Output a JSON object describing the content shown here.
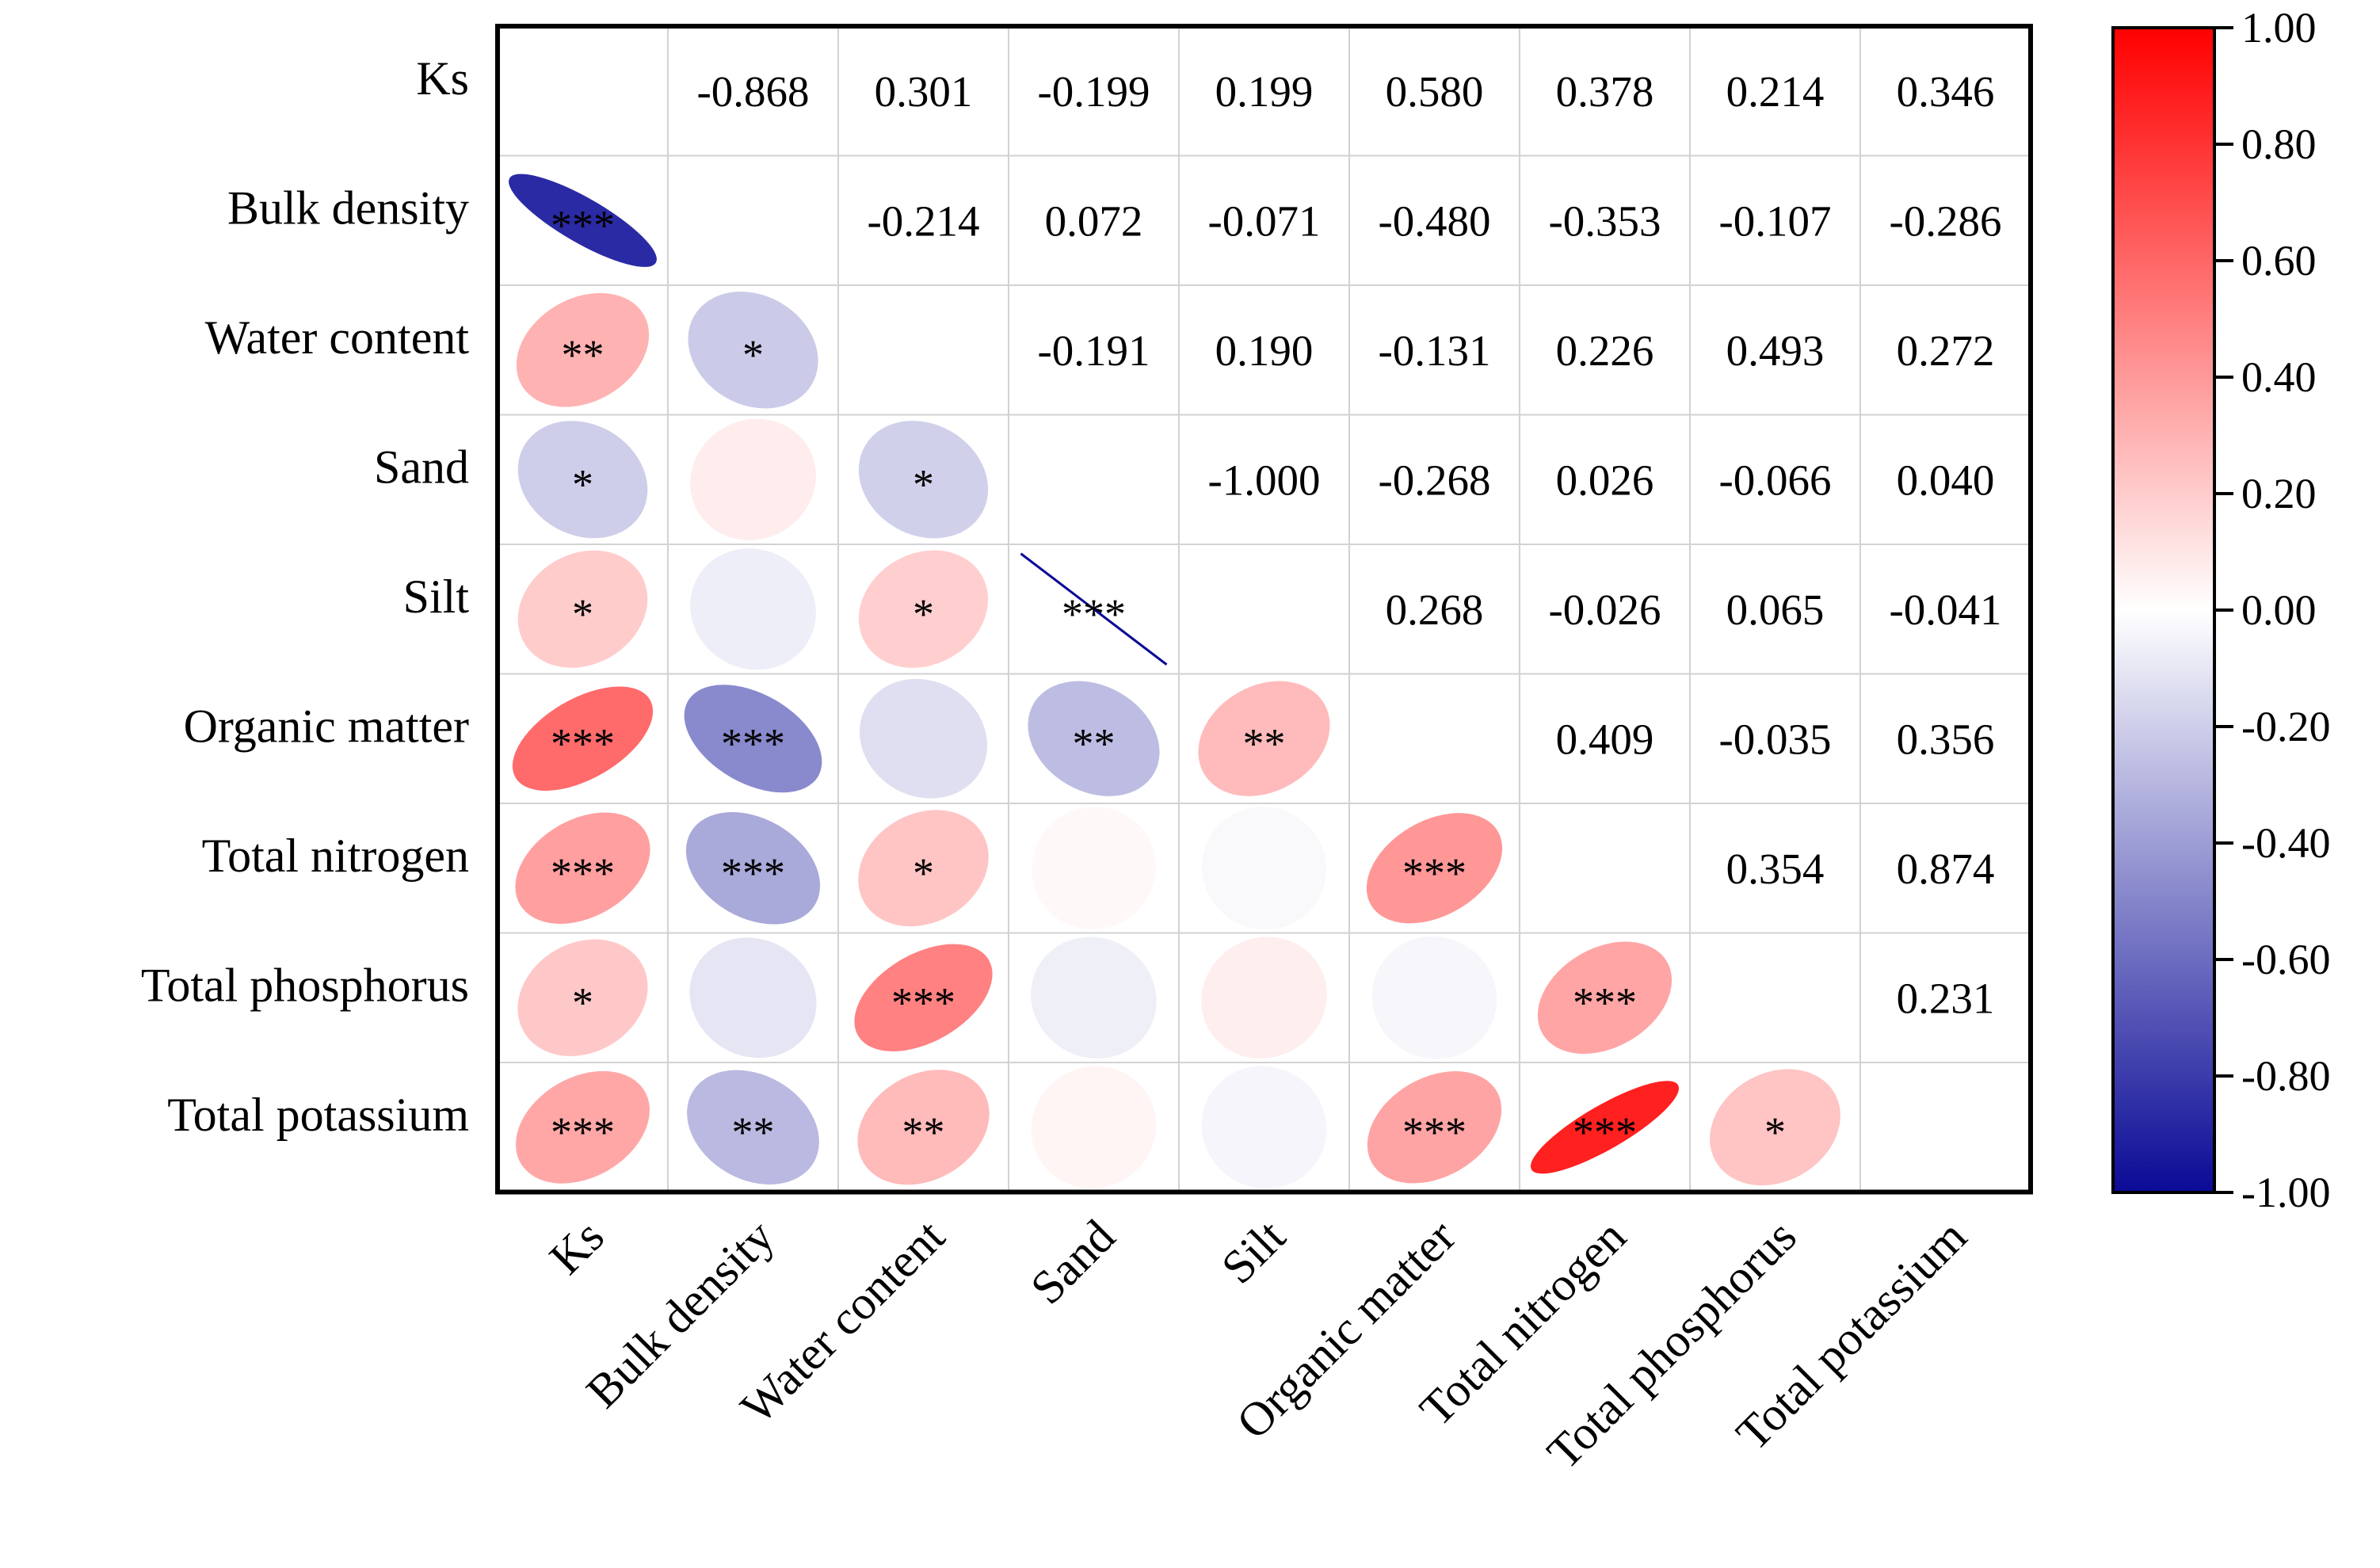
{
  "chart_data": {
    "type": "heatmap",
    "title": "",
    "variables": [
      "Ks",
      "Bulk density",
      "Water content",
      "Sand",
      "Silt",
      "Organic matter",
      "Total nitrogen",
      "Total phosphorus",
      "Total potassium"
    ],
    "values": [
      [
        "",
        "-0.868",
        "0.301",
        "-0.199",
        "0.199",
        "0.580",
        "0.378",
        "0.214",
        "0.346"
      ],
      [
        "",
        "",
        "-0.214",
        "0.072",
        "-0.071",
        "-0.480",
        "-0.353",
        "-0.107",
        "-0.286"
      ],
      [
        "",
        "",
        "",
        "-0.191",
        "0.190",
        "-0.131",
        "0.226",
        "0.493",
        "0.272"
      ],
      [
        "",
        "",
        "",
        "",
        "-1.000",
        "-0.268",
        "0.026",
        "-0.066",
        "0.040"
      ],
      [
        "",
        "",
        "",
        "",
        "",
        "0.268",
        "-0.026",
        "0.065",
        "-0.041"
      ],
      [
        "",
        "",
        "",
        "",
        "",
        "",
        "0.409",
        "-0.035",
        "0.356"
      ],
      [
        "",
        "",
        "",
        "",
        "",
        "",
        "",
        "0.354",
        "0.874"
      ],
      [
        "",
        "",
        "",
        "",
        "",
        "",
        "",
        "",
        "0.231"
      ],
      [
        "",
        "",
        "",
        "",
        "",
        "",
        "",
        "",
        ""
      ]
    ],
    "significance": [
      [
        "",
        "",
        "",
        "",
        "",
        "",
        "",
        "",
        ""
      ],
      [
        "***",
        "",
        "",
        "",
        "",
        "",
        "",
        "",
        ""
      ],
      [
        "**",
        "*",
        "",
        "",
        "",
        "",
        "",
        "",
        ""
      ],
      [
        "*",
        "",
        "*",
        "",
        "",
        "",
        "",
        "",
        ""
      ],
      [
        "*",
        "",
        "*",
        "***",
        "",
        "",
        "",
        "",
        ""
      ],
      [
        "***",
        "***",
        "",
        "**",
        "**",
        "",
        "",
        "",
        ""
      ],
      [
        "***",
        "***",
        "*",
        "",
        "",
        "***",
        "",
        "",
        ""
      ],
      [
        "*",
        "",
        "***",
        "",
        "",
        "",
        "***",
        "",
        ""
      ],
      [
        "***",
        "**",
        "**",
        "",
        "",
        "***",
        "***",
        "*",
        ""
      ]
    ],
    "colorbar": {
      "range": [
        -1,
        1
      ],
      "ticks": [
        "1.00",
        "0.80",
        "0.60",
        "0.40",
        "0.20",
        "0.00",
        "-0.20",
        "-0.40",
        "-0.60",
        "-0.80",
        "-1.00"
      ],
      "colors": {
        "negative": "#0a0a96",
        "zero": "#ffffff",
        "positive": "#ff0000"
      }
    },
    "xlabel": "",
    "ylabel": ""
  }
}
